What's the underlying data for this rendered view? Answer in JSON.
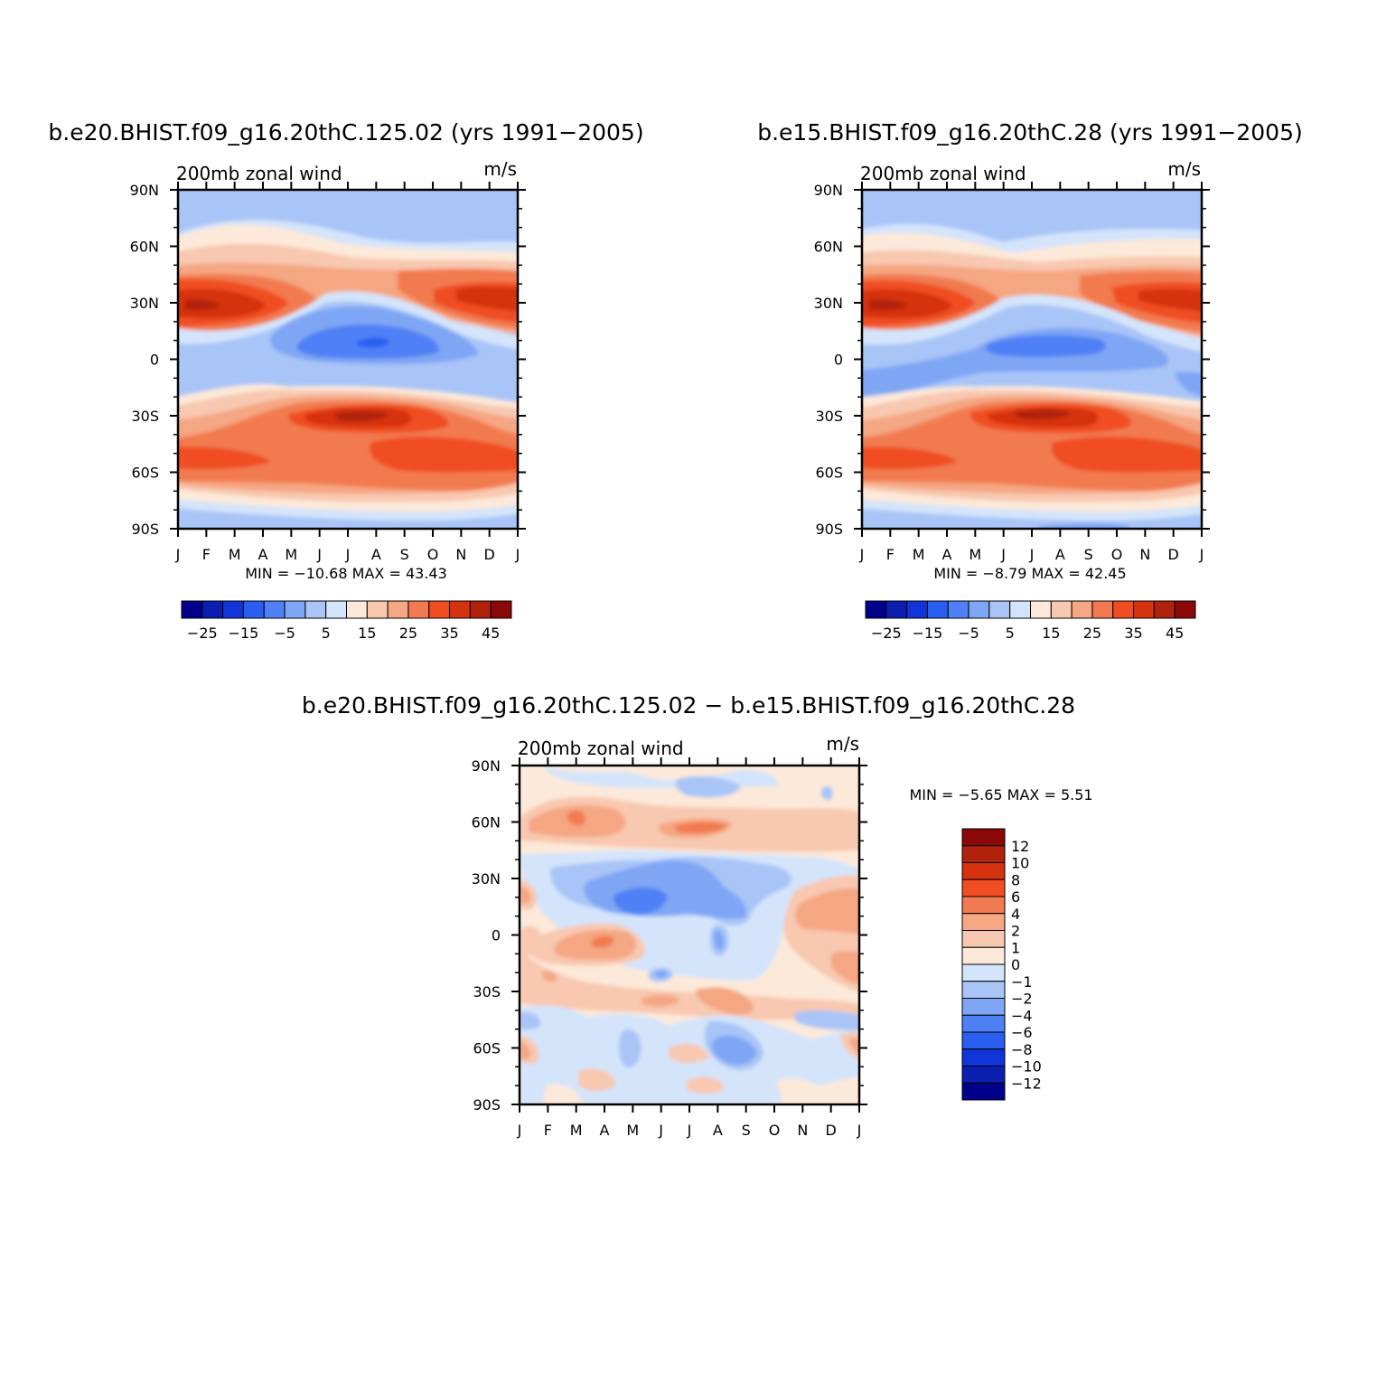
{
  "panels": [
    {
      "title": "b.e20.BHIST.f09_g16.20thC.125.02 (yrs 1991−2005)",
      "variable": "200mb zonal wind",
      "units": "m/s",
      "stats": {
        "min_label": "MIN =",
        "min": "−10.68",
        "max_label": "MAX =",
        "max": "43.43"
      }
    },
    {
      "title": "b.e15.BHIST.f09_g16.20thC.28 (yrs 1991−2005)",
      "variable": "200mb zonal wind",
      "units": "m/s",
      "stats": {
        "min_label": "MIN =",
        "min": "−8.79",
        "max_label": "MAX =",
        "max": "42.45"
      }
    },
    {
      "title": "b.e20.BHIST.f09_g16.20thC.125.02 − b.e15.BHIST.f09_g16.20thC.28",
      "variable": "200mb zonal wind",
      "units": "m/s",
      "stats": {
        "min_label": "MIN =",
        "min": "−5.65",
        "max_label": "MAX =",
        "max": "5.51"
      }
    }
  ],
  "colorbars": {
    "full": {
      "colors": [
        "#00008b",
        "#0a1fb0",
        "#1034d8",
        "#2a5ef0",
        "#4f80f5",
        "#7fa6f5",
        "#a9c4f7",
        "#d4e4fb",
        "#fde9d9",
        "#f8c8b0",
        "#f5a682",
        "#f27a50",
        "#f04e22",
        "#d5330f",
        "#b0220b",
        "#8a0808"
      ],
      "labels": [
        "−25",
        "−15",
        "−5",
        "5",
        "15",
        "25",
        "35",
        "45"
      ]
    },
    "diff": {
      "colors": [
        "#00008b",
        "#0a1fb0",
        "#1034d8",
        "#2a5ef0",
        "#4f80f5",
        "#7fa6f5",
        "#a9c4f7",
        "#d4e4fb",
        "#fde9d9",
        "#f8c8b0",
        "#f5a682",
        "#f27a50",
        "#f04e22",
        "#d5330f",
        "#b0220b",
        "#8a0808"
      ],
      "labels": [
        "12",
        "10",
        "8",
        "6",
        "4",
        "2",
        "1",
        "0",
        "−1",
        "−2",
        "−4",
        "−6",
        "−8",
        "−10",
        "−12"
      ]
    }
  },
  "chart_data": [
    {
      "type": "heatmap",
      "title": "b.e20.BHIST.f09_g16.20thC.125.02 (yrs 1991−2005)",
      "subtitle": "200mb zonal wind",
      "units": "m/s",
      "x": [
        "J",
        "F",
        "M",
        "A",
        "M",
        "J",
        "J",
        "A",
        "S",
        "O",
        "N",
        "D",
        "J"
      ],
      "y": [
        "90S",
        "60S",
        "30S",
        "0",
        "30N",
        "60N",
        "90N"
      ],
      "levels": [
        -25,
        -15,
        -5,
        5,
        15,
        25,
        35,
        45
      ],
      "min": -10.68,
      "max": 43.43
    },
    {
      "type": "heatmap",
      "title": "b.e15.BHIST.f09_g16.20thC.28 (yrs 1991−2005)",
      "subtitle": "200mb zonal wind",
      "units": "m/s",
      "x": [
        "J",
        "F",
        "M",
        "A",
        "M",
        "J",
        "J",
        "A",
        "S",
        "O",
        "N",
        "D",
        "J"
      ],
      "y": [
        "90S",
        "60S",
        "30S",
        "0",
        "30N",
        "60N",
        "90N"
      ],
      "levels": [
        -25,
        -15,
        -5,
        5,
        15,
        25,
        35,
        45
      ],
      "min": -8.79,
      "max": 42.45
    },
    {
      "type": "heatmap",
      "title": "b.e20.BHIST.f09_g16.20thC.125.02 − b.e15.BHIST.f09_g16.20thC.28",
      "subtitle": "200mb zonal wind",
      "units": "m/s",
      "x": [
        "J",
        "F",
        "M",
        "A",
        "M",
        "J",
        "J",
        "A",
        "S",
        "O",
        "N",
        "D",
        "J"
      ],
      "y": [
        "90S",
        "60S",
        "30S",
        "0",
        "30N",
        "60N",
        "90N"
      ],
      "levels": [
        -12,
        -10,
        -8,
        -6,
        -4,
        -2,
        -1,
        0,
        1,
        2,
        4,
        6,
        8,
        10,
        12
      ],
      "min": -5.65,
      "max": 5.51
    }
  ]
}
